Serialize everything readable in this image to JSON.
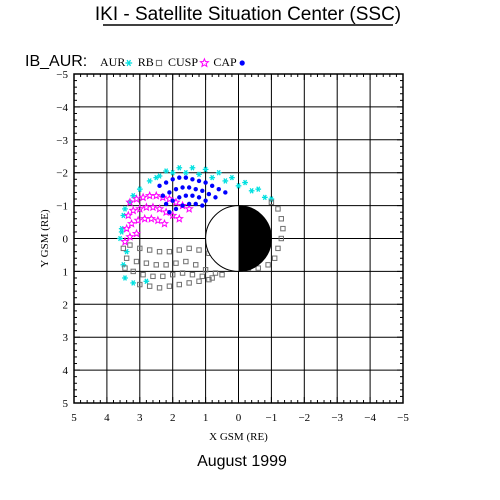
{
  "page": {
    "title": "IKI - Satellite Situation Center (SSC)",
    "footer": "August   1999"
  },
  "chart_data": {
    "type": "scatter",
    "panel_label": "IB_AUR:",
    "xlabel": "X GSM (RE)",
    "ylabel": "Y GSM (RE)",
    "xlim": [
      5,
      -5
    ],
    "ylim": [
      -5,
      5
    ],
    "x_ticks": [
      5,
      4,
      3,
      2,
      1,
      0,
      -1,
      -2,
      -3,
      -4,
      -5
    ],
    "x_tick_labels": [
      "5",
      "4",
      "3",
      "2",
      "1",
      "0",
      "−1",
      "−2",
      "−3",
      "−4",
      "−5"
    ],
    "y_ticks": [
      -5,
      -4,
      -3,
      -2,
      -1,
      0,
      1,
      2,
      3,
      4,
      5
    ],
    "y_tick_labels": [
      "−5",
      "−4",
      "−3",
      "−2",
      "−1",
      "0",
      "1",
      "2",
      "3",
      "4",
      "5"
    ],
    "grid": true,
    "legend_placement": "top-left, single row",
    "earth": {
      "center": [
        0,
        0
      ],
      "radius": 1,
      "night_side": "negative-x",
      "day_color": "#ffffff",
      "night_color": "#000000"
    },
    "series": [
      {
        "name": "AUR",
        "marker": "asterisk",
        "color": "#00e0e0",
        "x": [
          3.5,
          3.3,
          3.0,
          2.7,
          2.4,
          2.0,
          1.6,
          1.2,
          0.8,
          0.4,
          0.0,
          -0.4,
          -0.8,
          3.55,
          3.4,
          3.6,
          3.5,
          3.45,
          3.2,
          2.8,
          2.5,
          2.2,
          1.8,
          1.4,
          1.0,
          0.6,
          0.2,
          -0.2,
          -0.6,
          -1.0,
          3.55,
          3.45,
          3.2
        ],
        "y": [
          -0.7,
          -1.1,
          -1.5,
          -1.75,
          -1.9,
          -2.0,
          -2.0,
          -1.95,
          -1.85,
          -1.75,
          -1.6,
          -1.45,
          -1.25,
          -0.2,
          0.4,
          0.0,
          0.8,
          1.2,
          1.35,
          1.3,
          -1.85,
          -2.05,
          -2.15,
          -2.15,
          -2.1,
          -2.0,
          -1.85,
          -1.7,
          -1.5,
          -1.2,
          -0.3,
          -0.9,
          -1.3
        ]
      },
      {
        "name": "RB",
        "marker": "square",
        "color": "#707070",
        "x": [
          3.3,
          3.0,
          2.7,
          2.4,
          2.1,
          1.8,
          1.5,
          1.2,
          0.9,
          0.6,
          0.3,
          0.0,
          -0.3,
          -0.6,
          -0.9,
          -1.1,
          -1.2,
          -1.3,
          -1.35,
          -1.3,
          -1.2,
          -1.0,
          3.4,
          3.1,
          2.8,
          2.5,
          2.2,
          1.9,
          1.6,
          1.3,
          1.0,
          0.7,
          3.2,
          2.9,
          2.6,
          2.3,
          2.0,
          1.7,
          1.4,
          1.1,
          0.8,
          0.5,
          3.0,
          2.7,
          2.4,
          2.1,
          1.8,
          1.5,
          1.2,
          0.9,
          3.5,
          3.45
        ],
        "y": [
          0.2,
          0.3,
          0.35,
          0.4,
          0.4,
          0.35,
          0.3,
          0.35,
          0.45,
          0.6,
          0.75,
          0.85,
          0.9,
          0.9,
          0.8,
          0.6,
          0.3,
          0.0,
          -0.3,
          -0.6,
          -0.9,
          -1.1,
          0.6,
          0.7,
          0.75,
          0.8,
          0.8,
          0.75,
          0.7,
          0.8,
          0.95,
          1.05,
          1.0,
          1.1,
          1.15,
          1.15,
          1.1,
          1.05,
          1.1,
          1.15,
          1.2,
          1.1,
          1.4,
          1.45,
          1.5,
          1.45,
          1.4,
          1.35,
          1.3,
          1.25,
          0.3,
          0.9
        ]
      },
      {
        "name": "CUSP",
        "marker": "star",
        "color": "#ff00ff",
        "x": [
          3.3,
          3.1,
          2.9,
          2.7,
          2.5,
          2.3,
          2.1,
          1.9,
          1.7,
          1.5,
          3.35,
          3.2,
          3.0,
          2.8,
          2.6,
          2.4,
          2.2,
          2.0,
          1.8,
          3.4,
          3.25,
          3.05,
          2.85,
          2.65,
          2.45,
          2.25,
          3.45,
          3.3,
          3.1
        ],
        "y": [
          -1.1,
          -1.2,
          -1.25,
          -1.3,
          -1.3,
          -1.25,
          -1.2,
          -1.1,
          -1.0,
          -0.9,
          -0.7,
          -0.85,
          -0.9,
          -0.95,
          -0.95,
          -0.9,
          -0.8,
          -0.7,
          -0.6,
          -0.3,
          -0.45,
          -0.55,
          -0.6,
          -0.6,
          -0.55,
          -0.45,
          0.1,
          -0.05,
          -0.15
        ]
      },
      {
        "name": "CAP",
        "marker": "dot",
        "color": "#0000ff",
        "x": [
          2.4,
          2.2,
          2.0,
          1.8,
          1.6,
          1.4,
          1.2,
          1.0,
          0.8,
          0.6,
          0.4,
          2.3,
          2.1,
          1.9,
          1.7,
          1.5,
          1.3,
          1.1,
          0.9,
          0.7,
          2.2,
          2.0,
          1.8,
          1.6,
          1.4,
          1.2,
          1.0,
          2.1,
          1.9,
          1.7,
          1.5,
          1.3,
          1.1
        ],
        "y": [
          -1.6,
          -1.7,
          -1.8,
          -1.85,
          -1.85,
          -1.8,
          -1.75,
          -1.7,
          -1.6,
          -1.5,
          -1.4,
          -1.3,
          -1.4,
          -1.5,
          -1.55,
          -1.55,
          -1.5,
          -1.45,
          -1.35,
          -1.25,
          -1.05,
          -1.15,
          -1.25,
          -1.3,
          -1.3,
          -1.25,
          -1.15,
          -0.8,
          -0.9,
          -1.0,
          -1.05,
          -1.05,
          -1.0
        ]
      }
    ]
  }
}
